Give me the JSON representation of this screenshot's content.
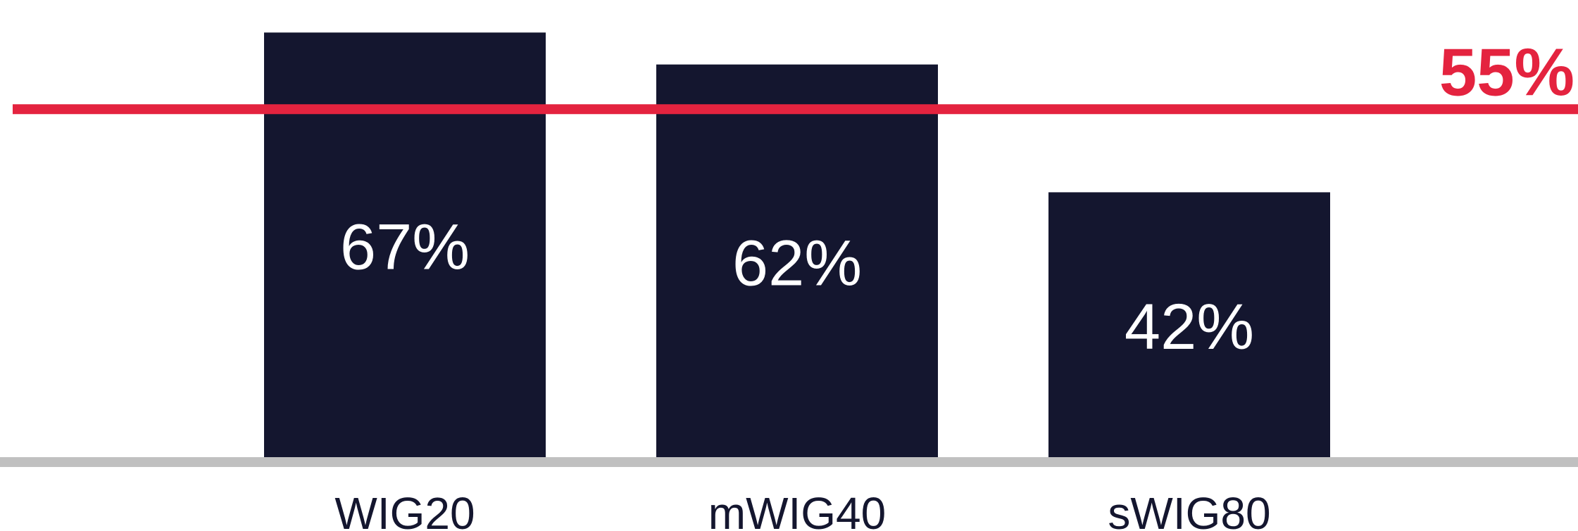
{
  "chart_data": {
    "type": "bar",
    "categories": [
      "WIG20",
      "mWIG40",
      "sWIG80"
    ],
    "values": [
      67,
      62,
      42
    ],
    "value_labels": [
      "67%",
      "62%",
      "42%"
    ],
    "ylim": [
      0,
      70
    ],
    "reference_line": {
      "value": 55,
      "label": "55%"
    },
    "grid": false,
    "colors": {
      "bar": "#14162f",
      "reference": "#e4233f",
      "baseline": "#c0c0c0",
      "value_text": "#ffffff",
      "category_text": "#14162f"
    }
  }
}
